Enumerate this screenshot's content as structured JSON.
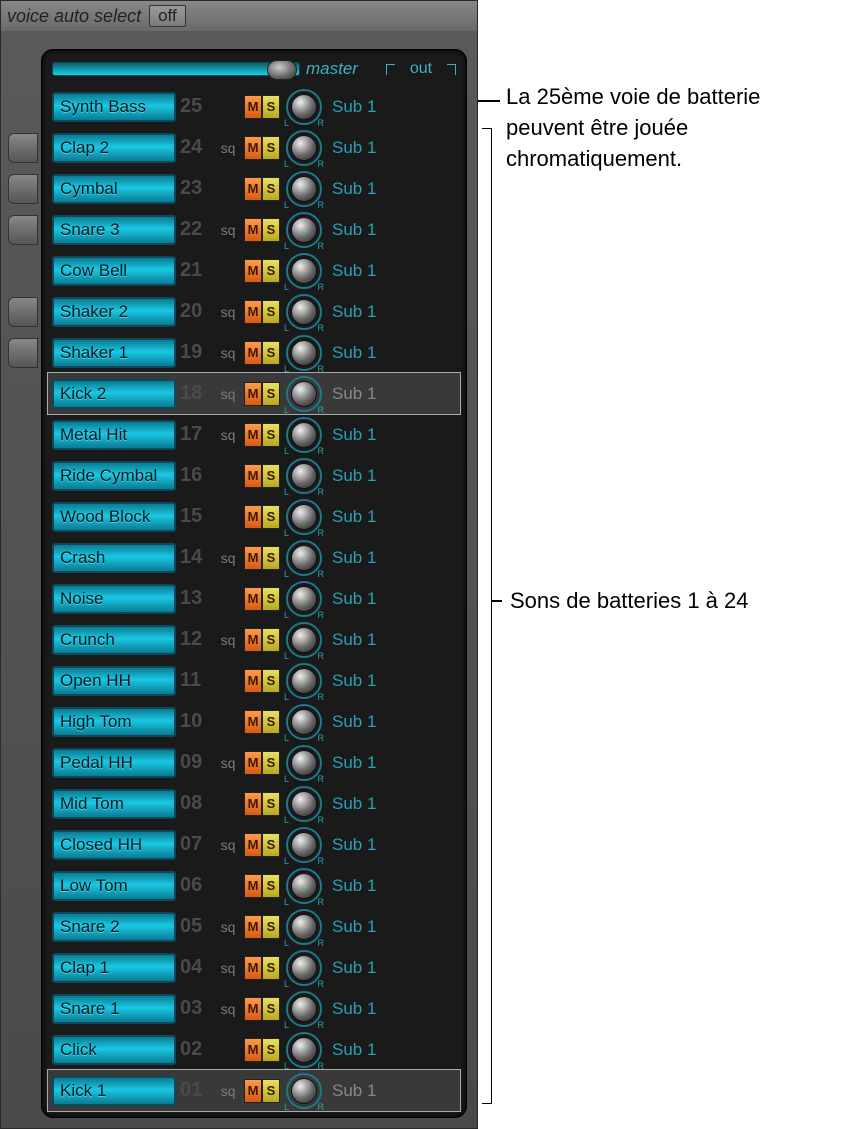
{
  "header": {
    "voice_auto_select": "voice auto select",
    "off": "off"
  },
  "master": {
    "label": "master",
    "out": "out"
  },
  "colors": {
    "track_bg": "#19c8e4",
    "mute": "#e8702a",
    "solo": "#d8c840",
    "ring": "#1b7a8a",
    "sub_text": "#2aa0b8"
  },
  "sub_label": "Sub 1",
  "sq_label": "sq",
  "m_label": "M",
  "s_label": "S",
  "lr": {
    "l": "L",
    "r": "R"
  },
  "tracks": [
    {
      "name": "Synth Bass",
      "num": "25",
      "sq": false,
      "selected": false,
      "tab": false
    },
    {
      "name": "Clap 2",
      "num": "24",
      "sq": true,
      "selected": false,
      "tab": true
    },
    {
      "name": "Cymbal",
      "num": "23",
      "sq": false,
      "selected": false,
      "tab": true
    },
    {
      "name": "Snare 3",
      "num": "22",
      "sq": true,
      "selected": false,
      "tab": true
    },
    {
      "name": "Cow Bell",
      "num": "21",
      "sq": false,
      "selected": false,
      "tab": false
    },
    {
      "name": "Shaker 2",
      "num": "20",
      "sq": true,
      "selected": false,
      "tab": true
    },
    {
      "name": "Shaker 1",
      "num": "19",
      "sq": true,
      "selected": false,
      "tab": true
    },
    {
      "name": "Kick 2",
      "num": "18",
      "sq": true,
      "selected": true,
      "tab": false
    },
    {
      "name": "Metal Hit",
      "num": "17",
      "sq": true,
      "selected": false,
      "tab": false
    },
    {
      "name": "Ride Cymbal",
      "num": "16",
      "sq": false,
      "selected": false,
      "tab": false
    },
    {
      "name": "Wood Block",
      "num": "15",
      "sq": false,
      "selected": false,
      "tab": false
    },
    {
      "name": "Crash",
      "num": "14",
      "sq": true,
      "selected": false,
      "tab": false
    },
    {
      "name": "Noise",
      "num": "13",
      "sq": false,
      "selected": false,
      "tab": false
    },
    {
      "name": "Crunch",
      "num": "12",
      "sq": true,
      "selected": false,
      "tab": false
    },
    {
      "name": "Open HH",
      "num": "11",
      "sq": false,
      "selected": false,
      "tab": false
    },
    {
      "name": "High Tom",
      "num": "10",
      "sq": false,
      "selected": false,
      "tab": false
    },
    {
      "name": "Pedal HH",
      "num": "09",
      "sq": true,
      "selected": false,
      "tab": false
    },
    {
      "name": "Mid Tom",
      "num": "08",
      "sq": false,
      "selected": false,
      "tab": false
    },
    {
      "name": "Closed HH",
      "num": "07",
      "sq": true,
      "selected": false,
      "tab": false
    },
    {
      "name": "Low Tom",
      "num": "06",
      "sq": false,
      "selected": false,
      "tab": false
    },
    {
      "name": "Snare 2",
      "num": "05",
      "sq": true,
      "selected": false,
      "tab": false
    },
    {
      "name": "Clap 1",
      "num": "04",
      "sq": true,
      "selected": false,
      "tab": false
    },
    {
      "name": "Snare 1",
      "num": "03",
      "sq": true,
      "selected": false,
      "tab": false
    },
    {
      "name": "Click",
      "num": "02",
      "sq": false,
      "selected": false,
      "tab": false
    },
    {
      "name": "Kick 1",
      "num": "01",
      "sq": true,
      "selected": true,
      "tab": false
    }
  ],
  "annotations": {
    "top": "La 25ème voie de batterie peuvent être jouée chromatiquement.",
    "mid": "Sons de batteries 1 à 24"
  }
}
